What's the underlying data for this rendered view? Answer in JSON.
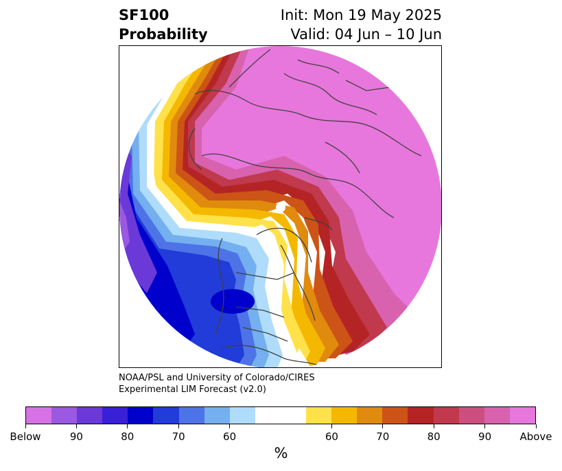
{
  "header": {
    "title_line1": "SF100",
    "title_line2": "Probability",
    "init_label": "Init: Mon 19 May 2025",
    "valid_label": "Valid: 04 Jun – 10 Jun"
  },
  "credit": {
    "line1": "NOAA/PSL and University of Colorado/CIRES",
    "line2": "Experimental LIM Forecast (v2.0)"
  },
  "colorbar": {
    "colors": [
      "#d672e3",
      "#9b58e0",
      "#6b39d8",
      "#3a1fd8",
      "#0000cc",
      "#213cd8",
      "#4d73e6",
      "#74aff0",
      "#aedcfa",
      "#ffffff",
      "#ffffff",
      "#ffe14a",
      "#f5b800",
      "#e08a0e",
      "#cc5417",
      "#b52424",
      "#c0394d",
      "#cc4f7f",
      "#d862ae",
      "#e777dc"
    ],
    "tick_labels": [
      "Below",
      "90",
      "80",
      "70",
      "60",
      "60",
      "70",
      "80",
      "90",
      "Above"
    ],
    "unit": "%"
  },
  "map": {
    "projection": "north polar stereographic",
    "colors": {
      "above_max": "#e777dc",
      "above_90": "#d862ae",
      "above_80": "#c0394d",
      "above_75": "#b52424",
      "above_70": "#cc5417",
      "above_65": "#e08a0e",
      "above_60": "#f5b800",
      "above_55": "#ffe14a",
      "below_55": "#aedcfa",
      "below_60": "#74aff0",
      "below_65": "#4d73e6",
      "below_70": "#213cd8",
      "below_75": "#0000cc",
      "below_85": "#6b39d8",
      "below_max": "#9b58e0",
      "coastline": "#404040"
    }
  }
}
